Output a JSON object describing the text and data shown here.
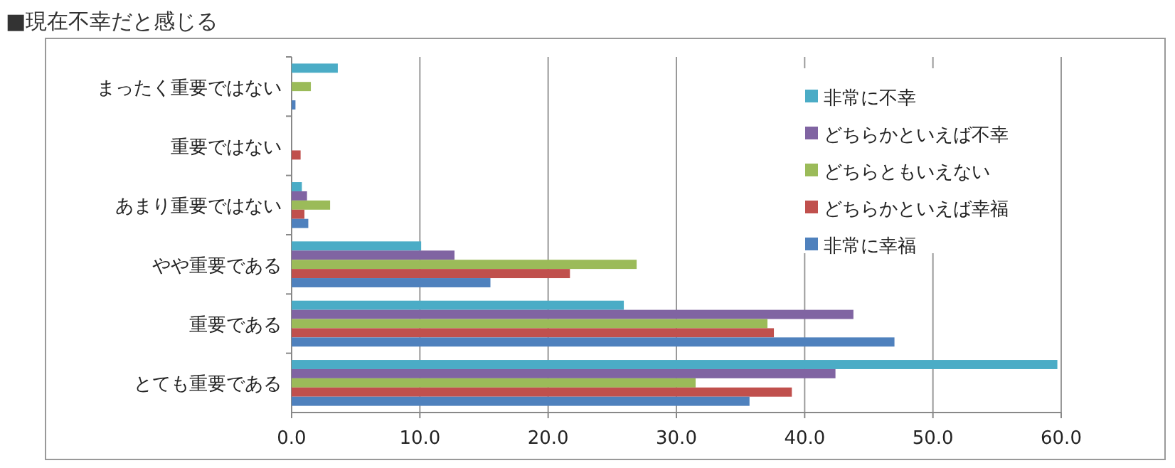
{
  "chart_data": {
    "type": "bar",
    "orientation": "horizontal",
    "title": "■現在不幸だと感じる",
    "categories": [
      "まったく重要ではない",
      "重要ではない",
      "あまり重要ではない",
      "やや重要である",
      "重要である",
      "とても重要である"
    ],
    "series": [
      {
        "name": "非常に不幸",
        "color": "#4bacc6",
        "values": [
          3.6,
          0,
          0.8,
          10.1,
          25.9,
          59.7
        ]
      },
      {
        "name": "どちらかといえば不幸",
        "color": "#8064a2",
        "values": [
          0,
          0,
          1.2,
          12.7,
          43.8,
          42.4
        ]
      },
      {
        "name": "どちらともいえない",
        "color": "#9bbb59",
        "values": [
          1.5,
          0,
          3.0,
          26.9,
          37.1,
          31.5
        ]
      },
      {
        "name": "どちらかといえば幸福",
        "color": "#c0504d",
        "values": [
          0,
          0.7,
          1.0,
          21.7,
          37.6,
          39.0
        ]
      },
      {
        "name": "非常に幸福",
        "color": "#4f81bd",
        "values": [
          0.3,
          null,
          1.3,
          15.5,
          47.0,
          35.7
        ]
      }
    ],
    "xlim": [
      0,
      60
    ],
    "xticks": [
      {
        "value": 0,
        "label": "0.0"
      },
      {
        "value": 10,
        "label": "10.0"
      },
      {
        "value": 20,
        "label": "20.0"
      },
      {
        "value": 30,
        "label": "30.0"
      },
      {
        "value": 40,
        "label": "40.0"
      },
      {
        "value": 50,
        "label": "50.0"
      },
      {
        "value": 60,
        "label": "60.0"
      }
    ],
    "grid": "x",
    "legend": "top right"
  }
}
